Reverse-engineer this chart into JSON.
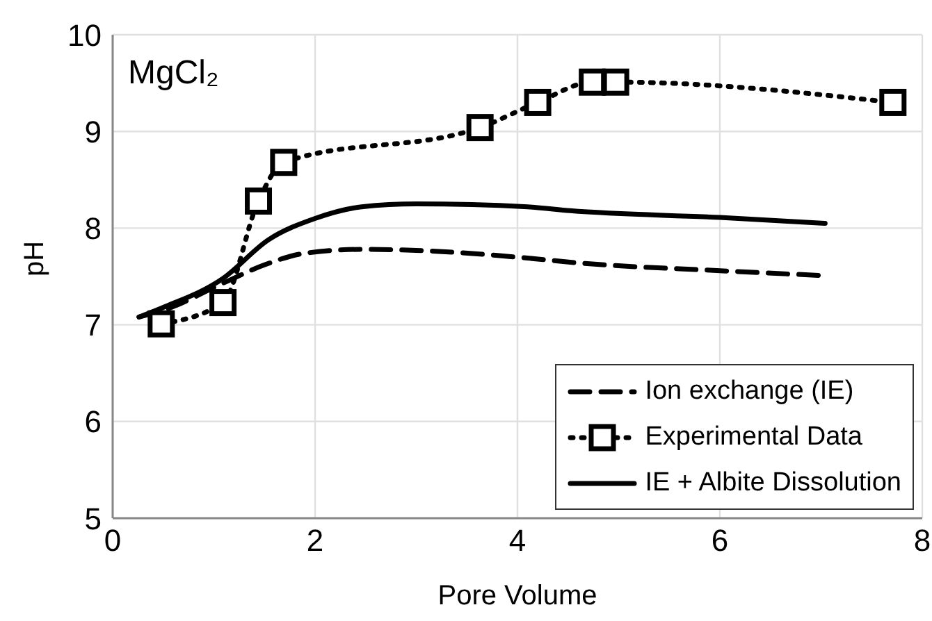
{
  "chart_data": {
    "type": "line",
    "xlabel": "Pore Volume",
    "ylabel": "pH",
    "annotations": [
      "MgCl₂"
    ],
    "xlim": [
      0,
      8
    ],
    "xticks": [
      0,
      2,
      4,
      6,
      8
    ],
    "ylim": [
      5,
      10
    ],
    "yticks": [
      5,
      6,
      7,
      8,
      9,
      10
    ],
    "grid": true,
    "legend": "bottom right",
    "series": [
      {
        "name": "Ion exchange (IE)",
        "color": "#000000",
        "line_style": "dashed",
        "marker": "none",
        "x": [
          0.26,
          0.5,
          1.09,
          1.5,
          1.9,
          2.46,
          3.0,
          4.1,
          4.6,
          6.0,
          7.0
        ],
        "values": [
          7.08,
          7.15,
          7.43,
          7.62,
          7.74,
          7.78,
          7.77,
          7.69,
          7.64,
          7.56,
          7.51
        ]
      },
      {
        "name": "Experimental Data",
        "color": "#000000",
        "line_style": "dotted",
        "marker": "square",
        "x": [
          0.48,
          1.09,
          1.44,
          1.69,
          3.63,
          4.2,
          4.74,
          4.97,
          7.71
        ],
        "values": [
          7.01,
          7.23,
          8.28,
          8.68,
          9.04,
          9.3,
          9.51,
          9.51,
          9.3
        ]
      },
      {
        "name": "IE + Albite Dissolution",
        "color": "#000000",
        "line_style": "solid",
        "marker": "none",
        "x": [
          0.26,
          0.5,
          1.09,
          1.54,
          2.0,
          2.46,
          3.0,
          4.1,
          4.52,
          6.0,
          7.04
        ],
        "values": [
          7.08,
          7.18,
          7.48,
          7.88,
          8.1,
          8.22,
          8.25,
          8.22,
          8.18,
          8.11,
          8.05
        ]
      }
    ]
  }
}
